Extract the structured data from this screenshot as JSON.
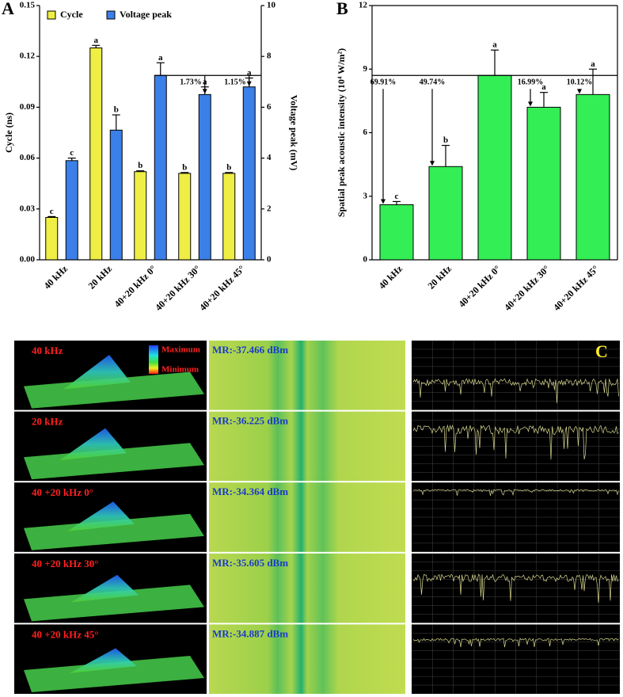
{
  "chart_data": [
    {
      "type": "bar",
      "panel_label": "A",
      "legend": "upper left",
      "categories": [
        "40 kHz",
        "20 kHz",
        "40+20 kHz 0°",
        "40+20 kHz 30°",
        "40+20 kHz 45°"
      ],
      "series": [
        {
          "name": "Cycle",
          "color": "#eeee44",
          "values": [
            0.025,
            0.125,
            0.052,
            0.051,
            0.051
          ],
          "errors": [
            0.0005,
            0.0015,
            0.0005,
            0.0005,
            0.0005
          ],
          "letters": [
            "c",
            "a",
            "b",
            "b",
            "b"
          ]
        },
        {
          "name": "Voltage peak",
          "color": "#3b7fe8",
          "axis": "y2",
          "values": [
            3.9,
            5.1,
            7.25,
            6.5,
            6.8
          ],
          "errors": [
            0.1,
            0.6,
            0.5,
            0.3,
            0.35
          ],
          "letters": [
            "c",
            "b",
            "a",
            "a",
            "a"
          ]
        }
      ],
      "ylabel": "Cycle (ns)",
      "y2label": "Voltage peak (mV)",
      "ylim": [
        0,
        0.15
      ],
      "yticks": [
        {
          "value": 0,
          "label": "0.00"
        },
        0.03,
        0.06,
        0.09,
        0.12,
        0.15
      ],
      "y2lim": [
        0,
        10
      ],
      "y2ticks": [
        0,
        2,
        4,
        6,
        8,
        10
      ],
      "annotations": [
        "1.73%",
        "1.15%"
      ]
    },
    {
      "type": "bar",
      "panel_label": "B",
      "categories": [
        "40 kHz",
        "20 kHz",
        "40+20 kHz 0°",
        "40+20 kHz 30°",
        "40+20 kHz 45°"
      ],
      "series": [
        {
          "name": "Spatial peak acoustic intensity",
          "color": "#33ee55",
          "values": [
            2.6,
            4.4,
            8.7,
            7.2,
            7.8
          ],
          "errors": [
            0.15,
            1.0,
            1.2,
            0.7,
            1.2
          ],
          "letters": [
            "c",
            "b",
            "a",
            "a",
            "a"
          ]
        }
      ],
      "ylabel": "Spatial peak acoustic intensity (10⁴ W/m²)",
      "ylim": [
        0,
        12
      ],
      "yticks": [
        0,
        3,
        6,
        9,
        12
      ],
      "annotations": [
        "69.91%",
        "49.74%",
        "16.99%",
        "10.12%"
      ]
    }
  ],
  "panel_c": {
    "label": "C",
    "scale_max": "Maximum",
    "scale_min": "Minimum",
    "rows": [
      {
        "label": "40 kHz",
        "mr": "MR:-37.466 dBm"
      },
      {
        "label": "20 kHz",
        "mr": "MR:-36.225 dBm"
      },
      {
        "label": "40 +20 kHz 0°",
        "mr": "MR:-34.364 dBm"
      },
      {
        "label": "40 +20 kHz 30°",
        "mr": "MR:-35.605 dBm"
      },
      {
        "label": "40 +20 kHz 45°",
        "mr": "MR:-34.887 dBm"
      }
    ]
  }
}
